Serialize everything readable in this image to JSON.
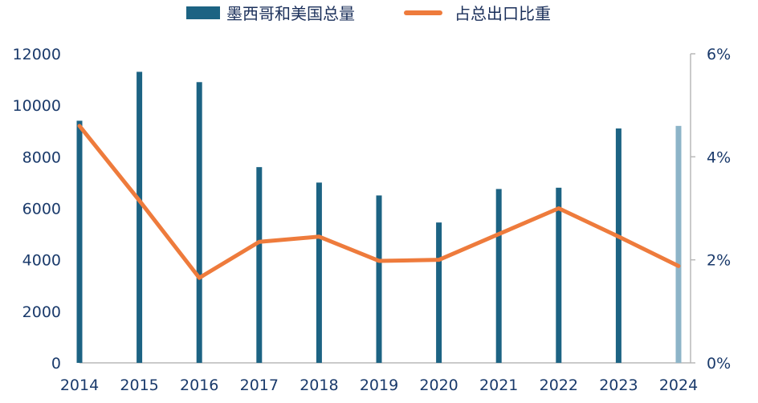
{
  "legend": {
    "bar_label": "墨西哥和美国总量",
    "line_label": "占总出口比重"
  },
  "colors": {
    "bar": "#1c6383",
    "bar_last": "#8db4c8",
    "line": "#ee7b3c",
    "axis": "#1a3a6b",
    "axis_line": "#b8b8b8",
    "gridline": "#e9eef3"
  },
  "chart_data": {
    "type": "bar",
    "title": "",
    "categories": [
      "2014",
      "2015",
      "2016",
      "2017",
      "2018",
      "2019",
      "2020",
      "2021",
      "2022",
      "2023",
      "2024"
    ],
    "series": [
      {
        "name": "墨西哥和美国总量",
        "type": "bar",
        "axis": "left",
        "values": [
          9400,
          11300,
          10900,
          7600,
          7000,
          6500,
          5450,
          6750,
          6800,
          9100,
          9200
        ]
      },
      {
        "name": "占总出口比重",
        "type": "line",
        "axis": "right",
        "values": [
          4.6,
          3.15,
          1.65,
          2.35,
          2.45,
          1.98,
          2.0,
          2.5,
          3.0,
          2.45,
          1.88
        ]
      }
    ],
    "y_left": {
      "ylim": [
        0,
        12000
      ],
      "ticks": [
        "0",
        "2000",
        "4000",
        "6000",
        "8000",
        "10000",
        "12000"
      ]
    },
    "y_right": {
      "ylim": [
        0,
        6
      ],
      "ticks": [
        "0%",
        "2%",
        "4%",
        "6%"
      ]
    },
    "legend_position": "top-center",
    "grid": false
  }
}
